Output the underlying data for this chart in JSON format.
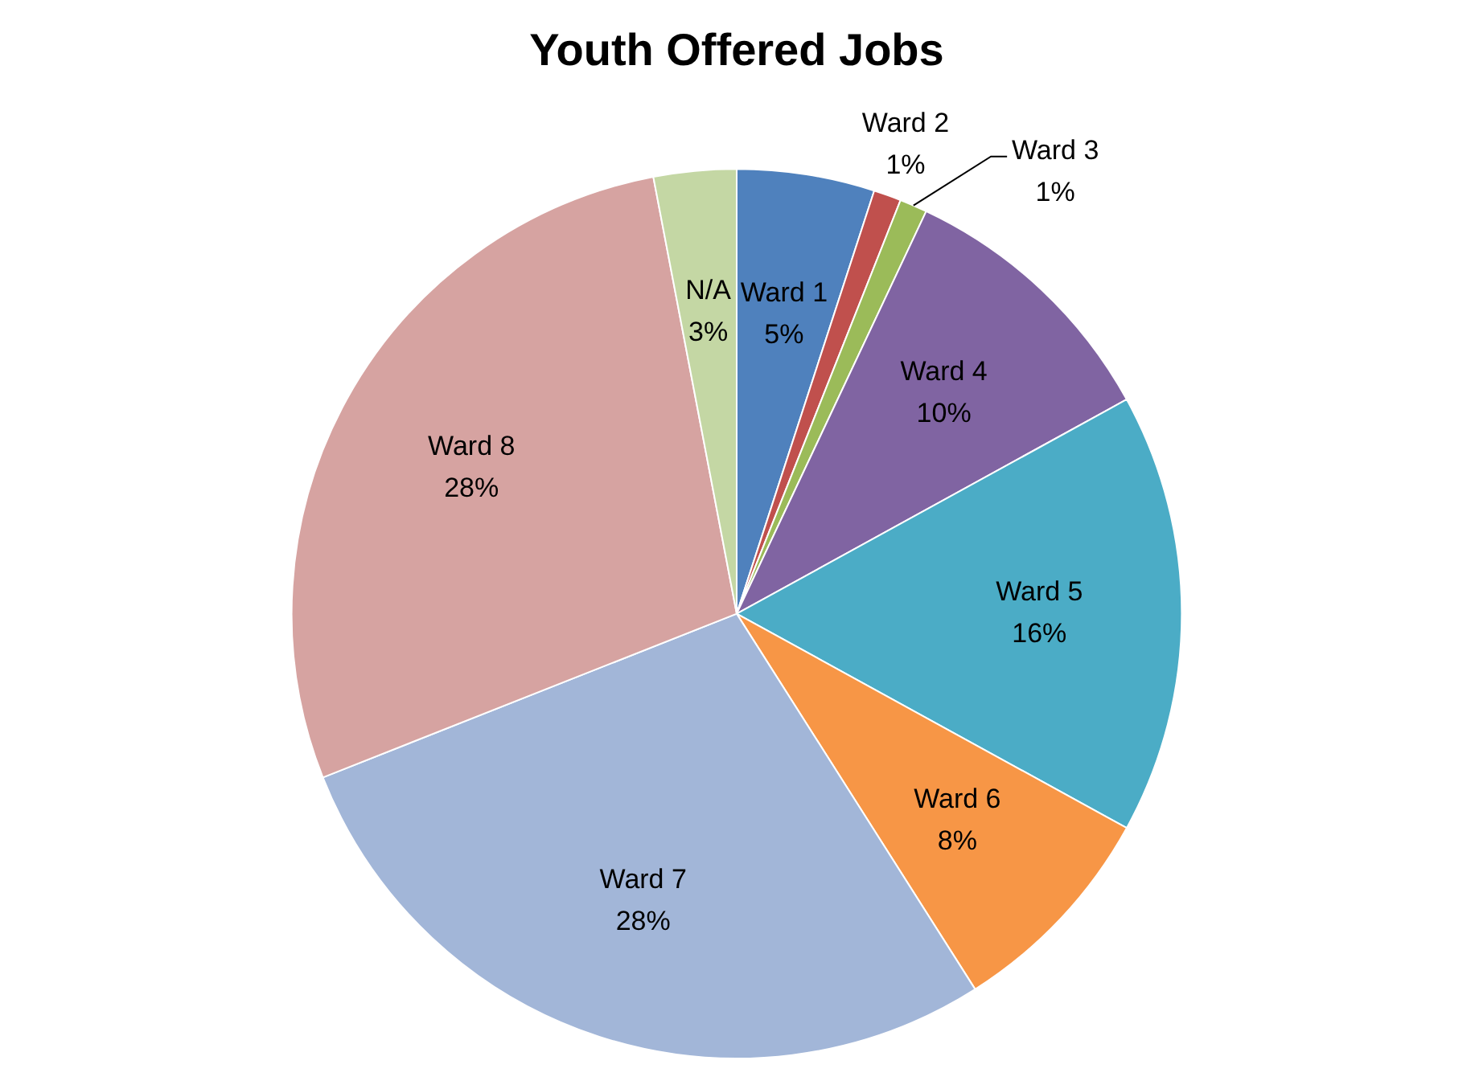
{
  "chart_data": {
    "type": "pie",
    "title": "Youth Offered Jobs",
    "categories": [
      "Ward 1",
      "Ward 2",
      "Ward 3",
      "Ward 4",
      "Ward 5",
      "Ward 6",
      "Ward 7",
      "Ward 8",
      "N/A"
    ],
    "values": [
      5,
      1,
      1,
      10,
      16,
      8,
      28,
      28,
      3
    ],
    "colors": [
      "#4f81bd",
      "#c0504d",
      "#9bbb59",
      "#8064a2",
      "#4bacc6",
      "#f79646",
      "#a2b6d8",
      "#d6a3a1",
      "#c4d7a4"
    ],
    "value_labels": [
      "5%",
      "1%",
      "1%",
      "10%",
      "16%",
      "8%",
      "28%",
      "28%",
      "3%"
    ],
    "legend": false
  }
}
